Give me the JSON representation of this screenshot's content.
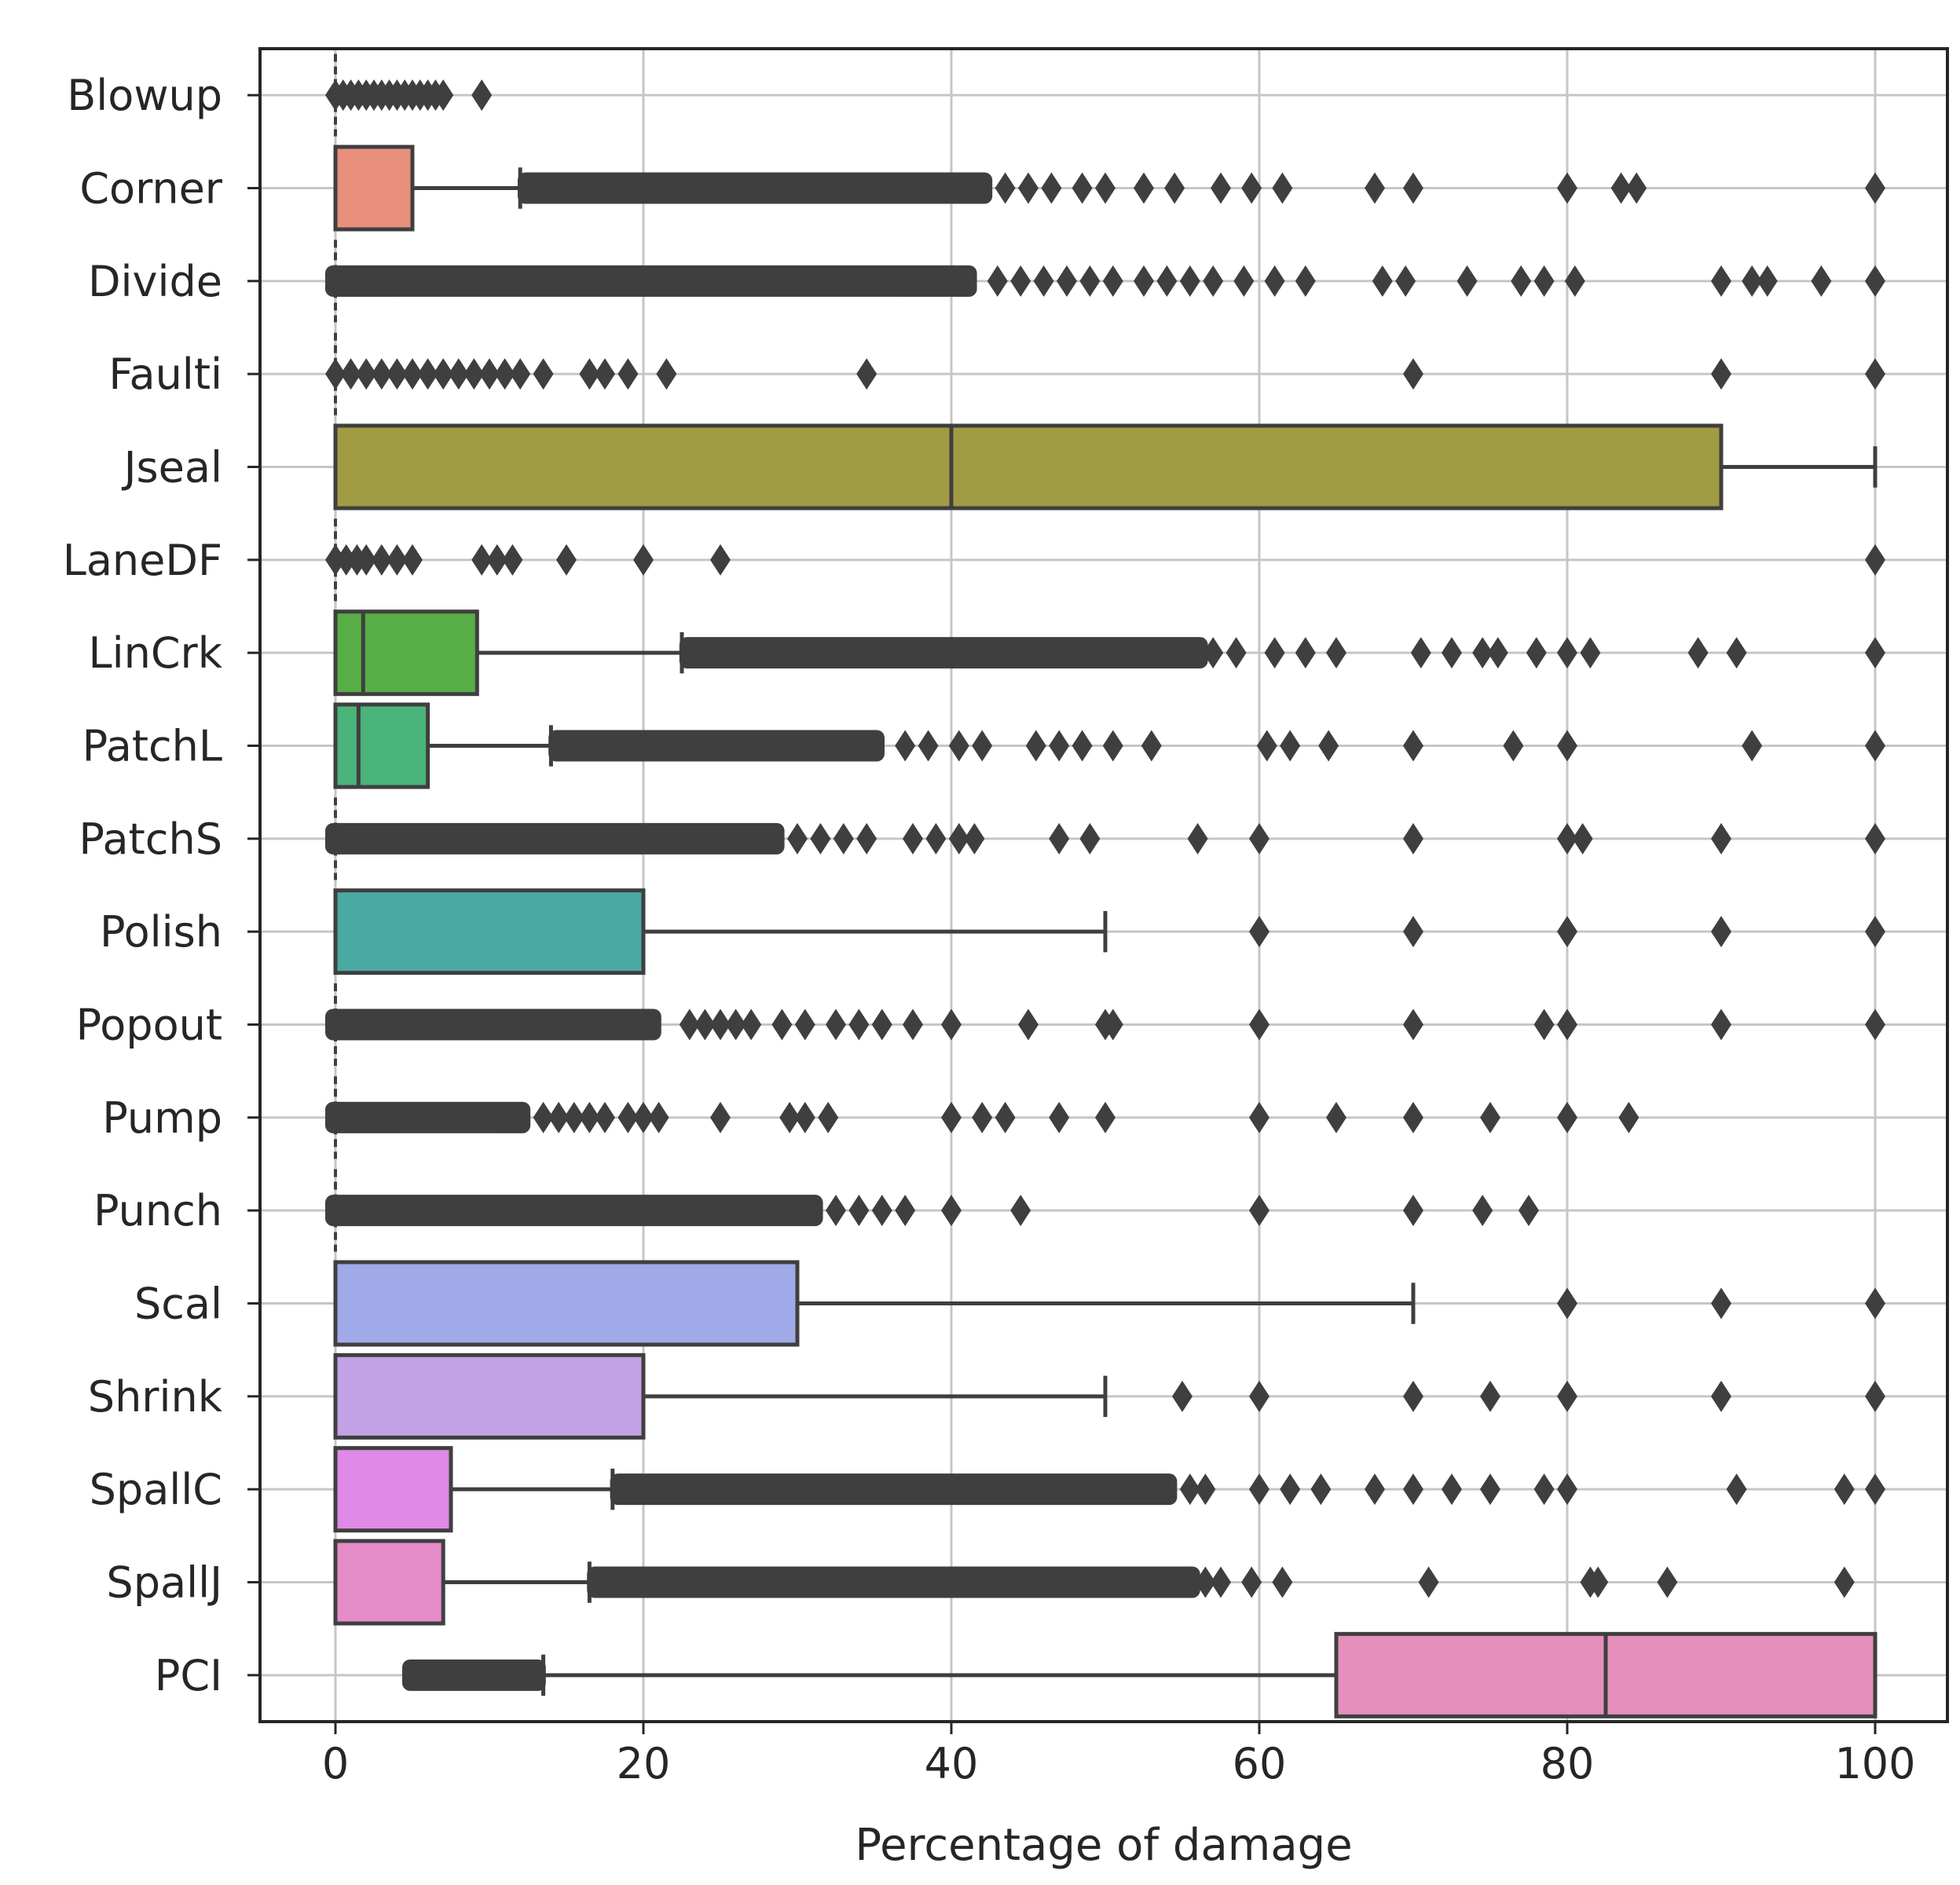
{
  "chart_data": {
    "type": "box",
    "orientation": "horizontal",
    "title": "",
    "xlabel": "Percentage of damage",
    "ylabel": "",
    "xlim": [
      -5,
      105
    ],
    "xticks": [
      0,
      20,
      40,
      60,
      80,
      100
    ],
    "xtick_labels": [
      "0",
      "20",
      "40",
      "60",
      "80",
      "100"
    ],
    "grid": true,
    "categories": [
      "Blowup",
      "Corner",
      "Divide",
      "Faulti",
      "Jseal",
      "LaneDF",
      "LinCrk",
      "PatchL",
      "PatchS",
      "Polish",
      "Popout",
      "Pump",
      "Punch",
      "Scal",
      "Shrink",
      "SpallC",
      "SpallJ",
      "PCI"
    ],
    "boxes": [
      {
        "name": "Blowup",
        "color": "#e8e8e8",
        "q1": 0,
        "median": 0,
        "q3": 0,
        "whisker_low": 0,
        "whisker_high": 0,
        "outliers": [
          0,
          0.5,
          1,
          1.5,
          2,
          2.5,
          3,
          3.5,
          4,
          4.5,
          5,
          5.5,
          6,
          6.5,
          7,
          9.5
        ],
        "outlier_band": null
      },
      {
        "name": "Corner",
        "color": "#e8907c",
        "q1": 0,
        "median": 0,
        "q3": 5,
        "whisker_low": 0,
        "whisker_high": 12,
        "outliers": [
          43.5,
          45,
          46.5,
          48.5,
          50,
          52.5,
          54.5,
          57.5,
          59.5,
          61.5,
          67.5,
          70,
          80,
          83.5,
          84.5,
          100
        ],
        "outlier_band": [
          12.5,
          42
        ]
      },
      {
        "name": "Divide",
        "color": "#e8e8e8",
        "q1": 0,
        "median": 0,
        "q3": 0,
        "whisker_low": 0,
        "whisker_high": 0,
        "outliers": [
          43,
          44.5,
          46,
          47.5,
          49,
          50.5,
          52.5,
          54,
          55.5,
          57,
          59,
          61,
          63,
          68,
          69.5,
          73.5,
          77,
          78.5,
          80.5,
          90,
          92,
          93,
          96.5,
          100
        ],
        "outlier_band": [
          0,
          41
        ]
      },
      {
        "name": "Faulti",
        "color": "#e8e8e8",
        "q1": 0,
        "median": 0,
        "q3": 0,
        "whisker_low": 0,
        "whisker_high": 0,
        "outliers": [
          0,
          1,
          2,
          3,
          4,
          5,
          6,
          7,
          8,
          9,
          10,
          11,
          12,
          13.5,
          16.5,
          17.5,
          19,
          21.5,
          34.5,
          70,
          90,
          100
        ],
        "outlier_band": null
      },
      {
        "name": "Jseal",
        "color": "#a19b44",
        "q1": 0,
        "median": 40,
        "q3": 90,
        "whisker_low": 0,
        "whisker_high": 100,
        "outliers": [],
        "outlier_band": null
      },
      {
        "name": "LaneDF",
        "color": "#e8e8e8",
        "q1": 0,
        "median": 0,
        "q3": 0,
        "whisker_low": 0,
        "whisker_high": 0,
        "outliers": [
          0,
          0.7,
          1.4,
          2,
          3,
          4,
          5,
          9.5,
          10.5,
          11.5,
          15,
          20,
          25,
          100
        ],
        "outlier_band": null
      },
      {
        "name": "LinCrk",
        "color": "#57ae47",
        "q1": 0,
        "median": 1.8,
        "q3": 9.2,
        "whisker_low": 0,
        "whisker_high": 22.5,
        "outliers": [
          57,
          58.5,
          61,
          63,
          65,
          70.5,
          72.5,
          74.5,
          75.5,
          78,
          80,
          81.5,
          88.5,
          91,
          100
        ],
        "outlier_band": [
          23,
          56
        ]
      },
      {
        "name": "PatchL",
        "color": "#4ab47a",
        "q1": 0,
        "median": 1.5,
        "q3": 6,
        "whisker_low": 0,
        "whisker_high": 14,
        "outliers": [
          37,
          38.5,
          40.5,
          42,
          45.5,
          47,
          48.5,
          50.5,
          53,
          60.5,
          62,
          64.5,
          70,
          76.5,
          80,
          92,
          100
        ],
        "outlier_band": [
          14.5,
          35
        ]
      },
      {
        "name": "PatchS",
        "color": "#e8e8e8",
        "q1": 0,
        "median": 0,
        "q3": 0,
        "whisker_low": 0,
        "whisker_high": 0,
        "outliers": [
          30,
          31.5,
          33,
          34.5,
          37.5,
          39,
          40.5,
          41.5,
          47,
          49,
          56,
          60,
          70,
          80,
          81,
          90,
          100
        ],
        "outlier_band": [
          0,
          28.5
        ]
      },
      {
        "name": "Polish",
        "color": "#4aa9a2",
        "q1": 0,
        "median": 0,
        "q3": 20,
        "whisker_low": 0,
        "whisker_high": 50,
        "outliers": [
          60,
          70,
          80,
          90,
          100
        ],
        "outlier_band": null
      },
      {
        "name": "Popout",
        "color": "#e8e8e8",
        "q1": 0,
        "median": 0,
        "q3": 0,
        "whisker_low": 0,
        "whisker_high": 0,
        "outliers": [
          23,
          24,
          25,
          26,
          27,
          29,
          30.5,
          32.5,
          34,
          35.5,
          37.5,
          40,
          45,
          50,
          50.5,
          60,
          70,
          78.5,
          80,
          90,
          100
        ],
        "outlier_band": [
          0,
          20.5
        ]
      },
      {
        "name": "Pump",
        "color": "#e8e8e8",
        "q1": 0,
        "median": 0,
        "q3": 0,
        "whisker_low": 0,
        "whisker_high": 0,
        "outliers": [
          13.5,
          14.5,
          15.5,
          16.5,
          17.5,
          19,
          20,
          21,
          25,
          29.5,
          30.5,
          32,
          40,
          42,
          43.5,
          47,
          50,
          60,
          65,
          70,
          75,
          80,
          84
        ],
        "outlier_band": [
          0,
          12
        ]
      },
      {
        "name": "Punch",
        "color": "#e8e8e8",
        "q1": 0,
        "median": 0,
        "q3": 0,
        "whisker_low": 0,
        "whisker_high": 0,
        "outliers": [
          32.5,
          34,
          35.5,
          37,
          40,
          44.5,
          60,
          70,
          74.5,
          77.5
        ],
        "outlier_band": [
          0,
          31
        ]
      },
      {
        "name": "Scal",
        "color": "#a1aae8",
        "q1": 0,
        "median": 0,
        "q3": 30,
        "whisker_low": 0,
        "whisker_high": 70,
        "outliers": [
          80,
          90,
          100
        ],
        "outlier_band": null
      },
      {
        "name": "Shrink",
        "color": "#c2a1e5",
        "q1": 0,
        "median": 0,
        "q3": 20,
        "whisker_low": 0,
        "whisker_high": 50,
        "outliers": [
          55,
          60,
          70,
          75,
          80,
          90,
          100
        ],
        "outlier_band": null
      },
      {
        "name": "SpallC",
        "color": "#de8ae6",
        "q1": 0,
        "median": 0,
        "q3": 7.5,
        "whisker_low": 0,
        "whisker_high": 18,
        "outliers": [
          55.5,
          56.5,
          60,
          62,
          64,
          67.5,
          70,
          72.5,
          75,
          78.5,
          80,
          91,
          98,
          100
        ],
        "outlier_band": [
          18.5,
          54
        ]
      },
      {
        "name": "SpallJ",
        "color": "#e58cc8",
        "q1": 0,
        "median": 0,
        "q3": 7,
        "whisker_low": 0,
        "whisker_high": 16.5,
        "outliers": [
          56.5,
          57.5,
          59.5,
          61.5,
          71,
          81.5,
          82,
          86.5,
          98
        ],
        "outlier_band": [
          17,
          55.5
        ]
      },
      {
        "name": "PCI",
        "color": "#e68ebc",
        "q1": 65,
        "median": 82.5,
        "q3": 100,
        "whisker_low": 13.5,
        "whisker_high": 100,
        "outliers": [],
        "outlier_band": [
          5,
          13
        ]
      }
    ]
  }
}
